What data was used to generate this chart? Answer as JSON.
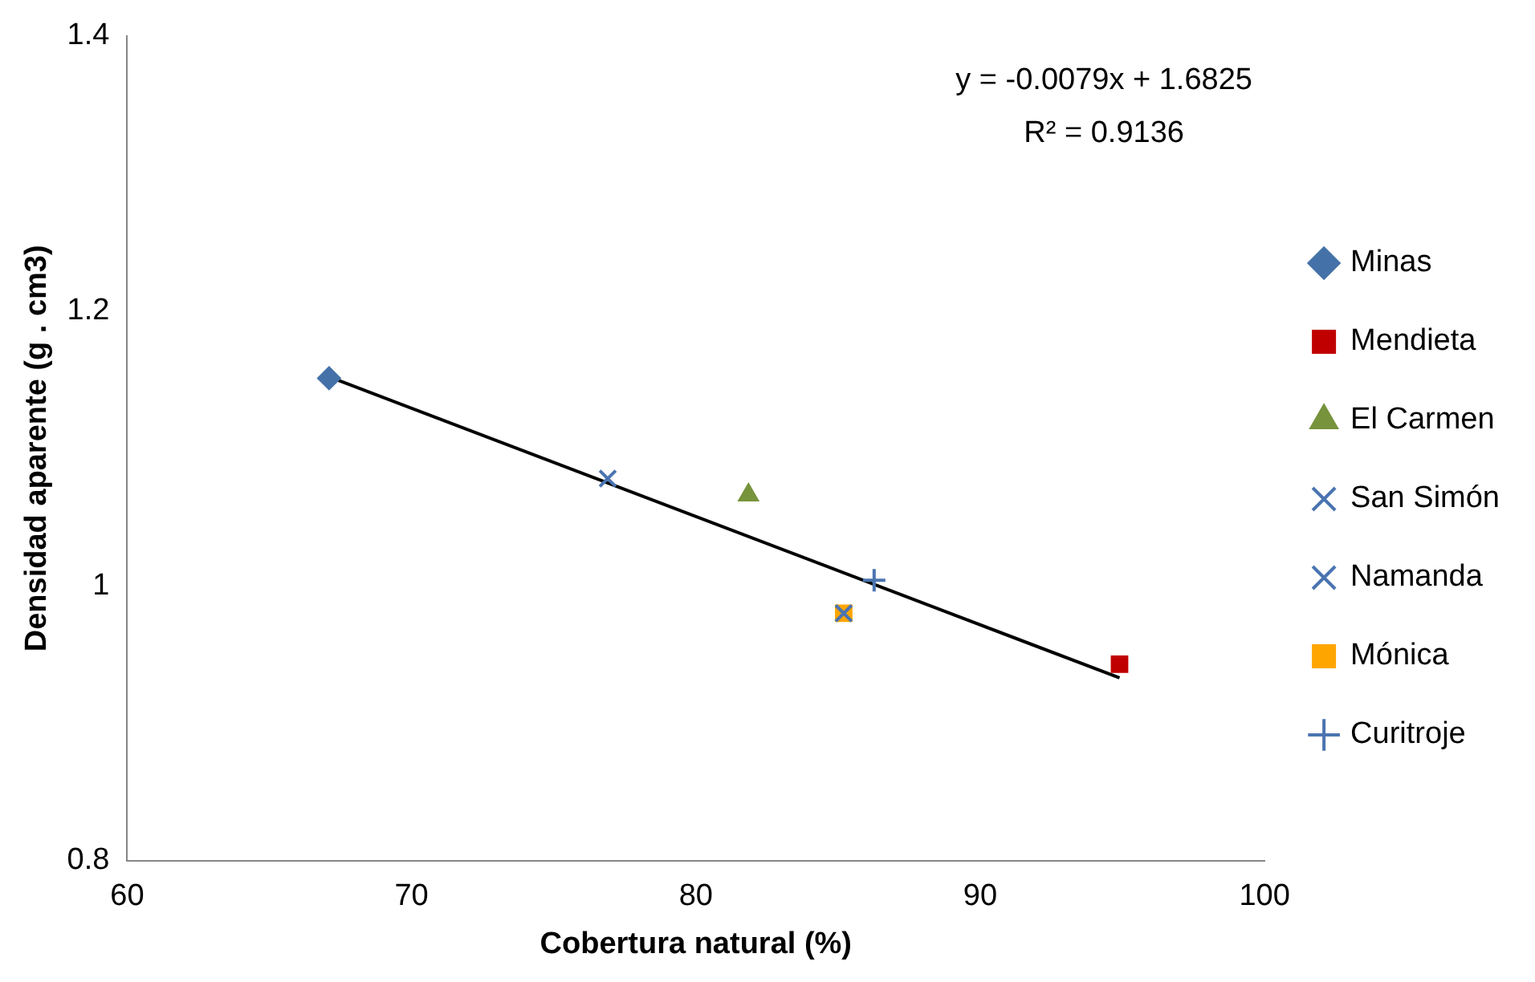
{
  "chart_data": {
    "type": "scatter",
    "xlabel": "Cobertura natural (%)",
    "ylabel": "Densidad aparente (g . cm3)",
    "xlim": [
      60,
      100
    ],
    "xticks": [
      60,
      70,
      80,
      90,
      100
    ],
    "ylim": [
      0.8,
      1.4
    ],
    "yticks": [
      0.8,
      1.0,
      1.2,
      1.4
    ],
    "grid": false,
    "legend": "right",
    "annotations": [
      "y = -0.0079x + 1.6825",
      "R² = 0.9136"
    ],
    "series": [
      {
        "name": "Minas",
        "color": "#4472a8",
        "marker": "diamond",
        "x": [
          67.1
        ],
        "values": [
          1.151
        ]
      },
      {
        "name": "Mendieta",
        "color": "#c00000",
        "marker": "square",
        "x": [
          94.9
        ],
        "values": [
          0.943
        ]
      },
      {
        "name": "El Carmen",
        "color": "#77933c",
        "marker": "triangle",
        "x": [
          81.85
        ],
        "values": [
          1.066
        ]
      },
      {
        "name": "San Simón",
        "color": "#4a74b0",
        "marker": "cross",
        "x": [
          85.2
        ],
        "values": [
          0.98
        ]
      },
      {
        "name": "Namanda",
        "color": "#4a74b0",
        "marker": "cross",
        "x": [
          76.9
        ],
        "values": [
          1.078
        ]
      },
      {
        "name": "Mónica",
        "color": "#ffa500",
        "marker": "square",
        "x": [
          85.2
        ],
        "values": [
          0.98
        ]
      },
      {
        "name": "Curitroje",
        "color": "#4a74b0",
        "marker": "plus",
        "x": [
          86.27
        ],
        "values": [
          1.004
        ]
      },
      {
        "type": "line",
        "color": "#000000",
        "marker": "none",
        "x": [
          67.1,
          94.9
        ],
        "values": [
          1.152,
          0.933
        ]
      }
    ]
  }
}
